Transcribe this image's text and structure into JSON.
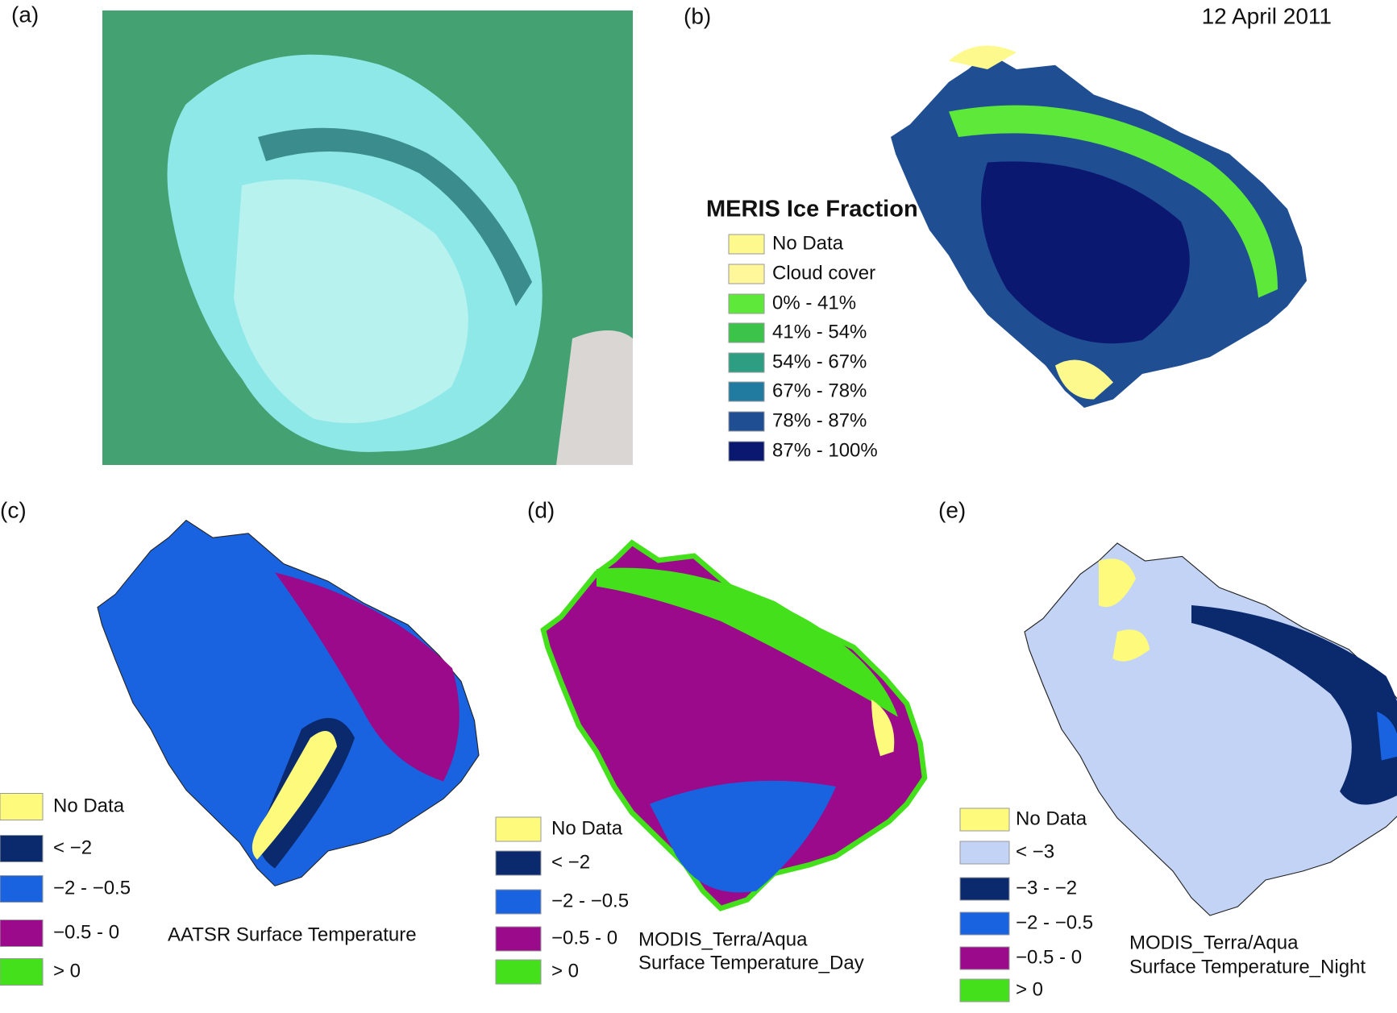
{
  "panels": [
    {
      "label": "(a)"
    },
    {
      "label": "(b)",
      "date": "12 April 2011",
      "legend": {
        "title": "MERIS Ice Fraction",
        "items": [
          {
            "label": "No Data",
            "color": "#fdf98c"
          },
          {
            "label": "Cloud cover",
            "color": "#fff79a"
          },
          {
            "label": "0% - 41%",
            "color": "#5ee83a"
          },
          {
            "label": "41% - 54%",
            "color": "#3cc44a"
          },
          {
            "label": "54% - 67%",
            "color": "#2e9e82"
          },
          {
            "label": "67% - 78%",
            "color": "#217aa0"
          },
          {
            "label": "78% - 87%",
            "color": "#1f4e93"
          },
          {
            "label": "87% - 100%",
            "color": "#0b1870"
          }
        ]
      }
    },
    {
      "label": "(c)",
      "title_lines": [
        "AATSR Surface Temperature"
      ],
      "legend": {
        "items": [
          {
            "label": "No Data",
            "color": "#fdfa7c"
          },
          {
            "label": "< −2",
            "color": "#0b2a6e"
          },
          {
            "label": "−2 - −0.5",
            "color": "#1a63e0"
          },
          {
            "label": "−0.5 - 0",
            "color": "#9a0a8a"
          },
          {
            "label": "> 0",
            "color": "#44e01c"
          }
        ]
      }
    },
    {
      "label": "(d)",
      "title_lines": [
        "MODIS_Terra/Aqua",
        "Surface Temperature_Day"
      ],
      "legend": {
        "items": [
          {
            "label": "No Data",
            "color": "#fdfa7c"
          },
          {
            "label": "< −2",
            "color": "#0b2a6e"
          },
          {
            "label": "−2 - −0.5",
            "color": "#1a63e0"
          },
          {
            "label": "−0.5 - 0",
            "color": "#9a0a8a"
          },
          {
            "label": "> 0",
            "color": "#44e01c"
          }
        ]
      }
    },
    {
      "label": "(e)",
      "title_lines": [
        "MODIS_Terra/Aqua",
        "Surface Temperature_Night"
      ],
      "legend": {
        "items": [
          {
            "label": "No Data",
            "color": "#fdfa7c"
          },
          {
            "label": "< −3",
            "color": "#c3d3f5"
          },
          {
            "label": "−3 - −2",
            "color": "#0b2a6e"
          },
          {
            "label": "−2 - −0.5",
            "color": "#1a63e0"
          },
          {
            "label": "−0.5 - 0",
            "color": "#9a0a8a"
          },
          {
            "label": "> 0",
            "color": "#44e01c"
          }
        ]
      }
    }
  ]
}
